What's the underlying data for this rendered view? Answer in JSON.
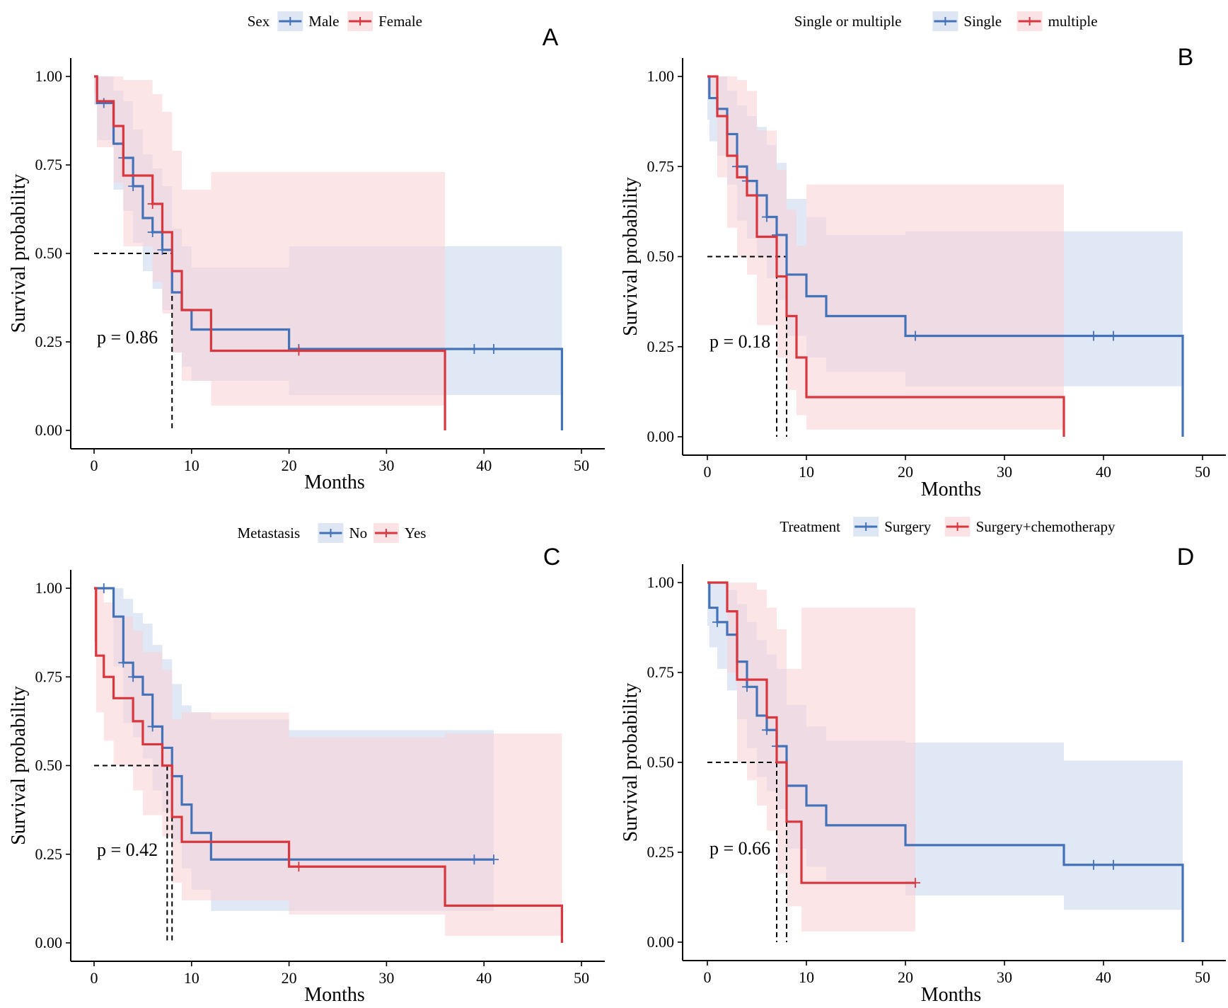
{
  "colors": {
    "blue": "#4472b8",
    "red": "#d9363e",
    "blue_band": "#c8d5ec",
    "red_band": "#f9d0d4",
    "axis": "#000000"
  },
  "chart_data": [
    {
      "type": "line",
      "label": "A",
      "xlabel": "Months",
      "ylabel": "Survival probability",
      "xlim": [
        0,
        50
      ],
      "ylim": [
        0,
        1
      ],
      "xticks": [
        "0",
        "10",
        "20",
        "30",
        "40",
        "50"
      ],
      "yticks": [
        "0.00",
        "0.25",
        "0.50",
        "0.75",
        "1.00"
      ],
      "legend_title": "Sex",
      "pvalue": "p = 0.86",
      "median_lines": [
        8
      ],
      "series": [
        {
          "name": "Male",
          "color": "blue",
          "x": [
            0,
            0.3,
            2,
            3,
            4,
            5,
            6,
            7,
            8,
            9,
            10,
            20,
            48
          ],
          "y": [
            1.0,
            0.925,
            0.81,
            0.77,
            0.69,
            0.6,
            0.56,
            0.51,
            0.39,
            0.34,
            0.285,
            0.23,
            0.0
          ],
          "censor_x": [
            1,
            3,
            4,
            6,
            7,
            21,
            39,
            41
          ],
          "ci_x": [
            0,
            0.3,
            2,
            3,
            4,
            5,
            6,
            7,
            8,
            9,
            10,
            20,
            36,
            48
          ],
          "ci_lo": [
            0.92,
            0.82,
            0.68,
            0.62,
            0.53,
            0.45,
            0.4,
            0.34,
            0.22,
            0.18,
            0.14,
            0.1,
            0.1,
            0.1
          ],
          "ci_hi": [
            1.0,
            1.0,
            0.96,
            0.93,
            0.85,
            0.78,
            0.74,
            0.69,
            0.57,
            0.52,
            0.46,
            0.52,
            0.52,
            0.52
          ]
        },
        {
          "name": "Female",
          "color": "red",
          "x": [
            0,
            0.3,
            2,
            3,
            6,
            7,
            8,
            9,
            12,
            36
          ],
          "y": [
            1.0,
            0.93,
            0.86,
            0.72,
            0.64,
            0.56,
            0.45,
            0.34,
            0.225,
            0.0
          ],
          "censor_x": [
            6,
            21
          ],
          "ci_x": [
            0,
            0.3,
            2,
            3,
            6,
            7,
            8,
            9,
            12,
            36
          ],
          "ci_lo": [
            0.95,
            0.8,
            0.7,
            0.52,
            0.42,
            0.33,
            0.22,
            0.14,
            0.07,
            0.07
          ],
          "ci_hi": [
            1.0,
            1.0,
            1.0,
            0.99,
            0.95,
            0.9,
            0.79,
            0.68,
            0.73,
            0.73
          ]
        }
      ]
    },
    {
      "type": "line",
      "label": "B",
      "xlabel": "Months",
      "ylabel": "Survival probability",
      "xlim": [
        0,
        50
      ],
      "ylim": [
        0,
        1
      ],
      "xticks": [
        "0",
        "10",
        "20",
        "30",
        "40",
        "50"
      ],
      "yticks": [
        "0.00",
        "0.25",
        "0.50",
        "0.75",
        "1.00"
      ],
      "legend_title": "Single or multiple",
      "pvalue": "p = 0.18",
      "median_lines": [
        7,
        8
      ],
      "series": [
        {
          "name": "Single",
          "color": "blue",
          "x": [
            0,
            0.2,
            1,
            2,
            3,
            4,
            5,
            6,
            7,
            8,
            10,
            12,
            20,
            48
          ],
          "y": [
            1.0,
            0.94,
            0.91,
            0.84,
            0.75,
            0.71,
            0.67,
            0.61,
            0.56,
            0.45,
            0.39,
            0.335,
            0.28,
            0.0
          ],
          "censor_x": [
            3,
            4,
            6,
            7,
            21,
            39,
            41
          ],
          "ci_x": [
            0,
            0.2,
            1,
            2,
            3,
            4,
            5,
            6,
            7,
            8,
            10,
            12,
            20,
            48
          ],
          "ci_lo": [
            0.88,
            0.82,
            0.78,
            0.7,
            0.6,
            0.55,
            0.5,
            0.44,
            0.38,
            0.28,
            0.22,
            0.18,
            0.14,
            0.14
          ],
          "ci_hi": [
            1.0,
            1.0,
            1.0,
            0.96,
            0.92,
            0.89,
            0.86,
            0.81,
            0.76,
            0.66,
            0.61,
            0.56,
            0.57,
            0.57
          ]
        },
        {
          "name": "multiple",
          "color": "red",
          "x": [
            0,
            1,
            2,
            3,
            4,
            5,
            7,
            8,
            9,
            10,
            36
          ],
          "y": [
            1.0,
            0.89,
            0.78,
            0.72,
            0.67,
            0.555,
            0.445,
            0.335,
            0.22,
            0.11,
            0.0
          ],
          "censor_x": [],
          "ci_x": [
            0,
            1,
            2,
            3,
            4,
            5,
            7,
            8,
            9,
            10,
            36
          ],
          "ci_lo": [
            0.95,
            0.72,
            0.58,
            0.5,
            0.45,
            0.31,
            0.22,
            0.13,
            0.06,
            0.02,
            0.02
          ],
          "ci_hi": [
            1.0,
            1.0,
            1.0,
            0.99,
            0.96,
            0.85,
            0.74,
            0.63,
            0.53,
            0.7,
            0.7
          ]
        }
      ]
    },
    {
      "type": "line",
      "label": "C",
      "xlabel": "Months",
      "ylabel": "Survival probability",
      "xlim": [
        0,
        50
      ],
      "ylim": [
        0,
        1
      ],
      "xticks": [
        "0",
        "10",
        "20",
        "30",
        "40",
        "50"
      ],
      "yticks": [
        "0.00",
        "0.25",
        "0.50",
        "0.75",
        "1.00"
      ],
      "legend_title": "Metastasis",
      "pvalue": "p = 0.42",
      "median_lines": [
        7.5,
        8
      ],
      "series": [
        {
          "name": "No",
          "color": "blue",
          "x": [
            0,
            2,
            3,
            4,
            5,
            6,
            7,
            8,
            9,
            10,
            12,
            41
          ],
          "y": [
            1.0,
            0.92,
            0.79,
            0.75,
            0.7,
            0.61,
            0.55,
            0.47,
            0.39,
            0.31,
            0.235,
            0.235
          ],
          "censor_x": [
            1,
            3,
            4,
            6,
            39,
            41
          ],
          "ci_x": [
            0,
            2,
            3,
            4,
            5,
            6,
            7,
            8,
            9,
            10,
            12,
            20,
            41
          ],
          "ci_lo": [
            1.0,
            0.78,
            0.62,
            0.58,
            0.52,
            0.43,
            0.37,
            0.29,
            0.21,
            0.15,
            0.09,
            0.09,
            0.09
          ],
          "ci_hi": [
            1.0,
            1.0,
            0.97,
            0.93,
            0.9,
            0.84,
            0.8,
            0.73,
            0.67,
            0.65,
            0.63,
            0.6,
            0.6
          ]
        },
        {
          "name": "Yes",
          "color": "red",
          "x": [
            0,
            0.2,
            1,
            2,
            4,
            5,
            7,
            8,
            9,
            20,
            36,
            48
          ],
          "y": [
            1.0,
            0.81,
            0.75,
            0.69,
            0.625,
            0.56,
            0.5,
            0.355,
            0.285,
            0.215,
            0.105,
            0.0
          ],
          "censor_x": [
            21
          ],
          "ci_x": [
            0,
            0.2,
            1,
            2,
            4,
            5,
            7,
            8,
            9,
            20,
            36,
            48
          ],
          "ci_lo": [
            0.85,
            0.65,
            0.57,
            0.5,
            0.43,
            0.36,
            0.3,
            0.17,
            0.12,
            0.08,
            0.02,
            0.02
          ],
          "ci_hi": [
            1.0,
            1.0,
            0.96,
            0.92,
            0.88,
            0.82,
            0.77,
            0.63,
            0.65,
            0.58,
            0.59,
            0.59
          ]
        }
      ]
    },
    {
      "type": "line",
      "label": "D",
      "xlabel": "Months",
      "ylabel": "Survival probability",
      "xlim": [
        0,
        50
      ],
      "ylim": [
        0,
        1
      ],
      "xticks": [
        "0",
        "10",
        "20",
        "30",
        "40",
        "50"
      ],
      "yticks": [
        "0.00",
        "0.25",
        "0.50",
        "0.75",
        "1.00"
      ],
      "legend_title": "Treatment",
      "pvalue": "p = 0.66",
      "median_lines": [
        7,
        8
      ],
      "series": [
        {
          "name": "Surgery",
          "color": "blue",
          "x": [
            0,
            0.2,
            1,
            2,
            3,
            4,
            5,
            6,
            7,
            8,
            10,
            12,
            20,
            36,
            48
          ],
          "y": [
            1.0,
            0.93,
            0.89,
            0.855,
            0.78,
            0.71,
            0.63,
            0.59,
            0.545,
            0.435,
            0.38,
            0.325,
            0.27,
            0.215,
            0.0
          ],
          "censor_x": [
            1,
            4,
            6,
            7,
            39,
            41
          ],
          "ci_x": [
            0,
            0.2,
            1,
            2,
            3,
            4,
            5,
            6,
            7,
            8,
            10,
            12,
            20,
            36,
            48
          ],
          "ci_lo": [
            0.88,
            0.82,
            0.76,
            0.7,
            0.62,
            0.54,
            0.46,
            0.42,
            0.37,
            0.26,
            0.21,
            0.17,
            0.13,
            0.09,
            0.09
          ],
          "ci_hi": [
            1.0,
            1.0,
            1.0,
            0.98,
            0.94,
            0.89,
            0.84,
            0.8,
            0.76,
            0.66,
            0.6,
            0.56,
            0.555,
            0.505,
            0.505
          ]
        },
        {
          "name": "Surgery+chemotherapy",
          "color": "red",
          "x": [
            0,
            2,
            3,
            4,
            5,
            6,
            7,
            8,
            9.5,
            21
          ],
          "y": [
            1.0,
            0.92,
            0.73,
            0.73,
            0.73,
            0.625,
            0.5,
            0.335,
            0.165,
            0.165
          ],
          "censor_x": [
            21
          ],
          "ci_x": [
            0,
            2,
            3,
            4,
            5,
            6,
            7,
            8,
            9.5,
            21
          ],
          "ci_lo": [
            1.0,
            0.75,
            0.5,
            0.45,
            0.38,
            0.31,
            0.19,
            0.1,
            0.03,
            0.03
          ],
          "ci_hi": [
            1.0,
            1.0,
            1.0,
            1.0,
            0.98,
            0.93,
            0.87,
            0.76,
            0.93,
            0.93
          ]
        }
      ]
    }
  ]
}
